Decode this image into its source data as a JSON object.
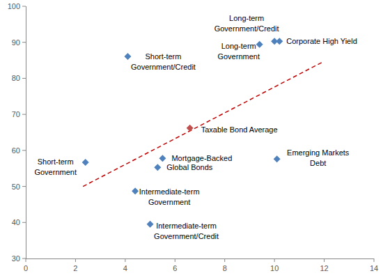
{
  "chart_data": {
    "type": "scatter",
    "xlim": [
      0,
      14
    ],
    "xticks": [
      0,
      2,
      4,
      6,
      8,
      10,
      12,
      14
    ],
    "ylim": [
      30,
      100
    ],
    "yticks": [
      30,
      40,
      50,
      60,
      70,
      80,
      90,
      100
    ],
    "grid": false,
    "series": [
      {
        "type": "scatter",
        "color": "#4f81bd",
        "marker": "diamond",
        "x": [
          4.1,
          9.4,
          10.0,
          10.2,
          2.4,
          5.5,
          5.3,
          10.1,
          4.4,
          5.0
        ],
        "values": [
          86.1,
          89.4,
          90.3,
          90.3,
          56.7,
          57.8,
          55.3,
          57.6,
          48.7,
          39.5
        ],
        "labels": [
          "Short-term Government/Credit",
          "Long-term Government",
          "Long-term Government/Credit",
          "Corporate High Yield",
          "Short-term Government",
          "Mortgage-Backed",
          "Global Bonds",
          "Emerging Markets Debt",
          "Intermediate-term Government",
          "Intermediate-term Government/Credit"
        ]
      },
      {
        "type": "scatter",
        "color": "#c0504d",
        "marker": "diamond",
        "x": [
          6.6
        ],
        "values": [
          66.2
        ],
        "labels": [
          "Taxable Bond Average"
        ]
      },
      {
        "type": "line",
        "color": "#c00000",
        "line_style": "dashed",
        "x": [
          2.3,
          11.9
        ],
        "values": [
          50.0,
          84.4
        ]
      }
    ]
  }
}
